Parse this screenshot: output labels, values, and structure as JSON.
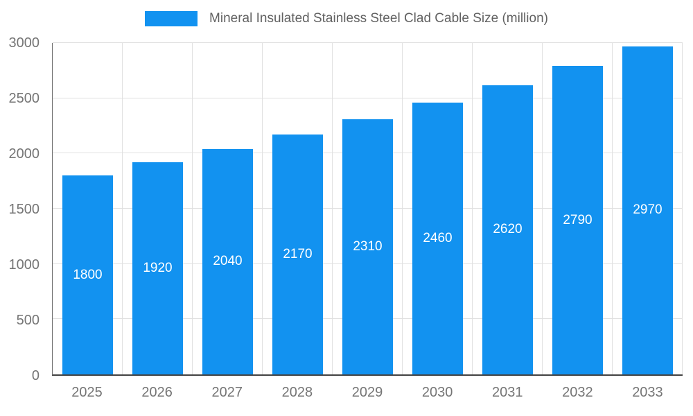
{
  "chart_data": {
    "type": "bar",
    "title": "Mineral Insulated Stainless Steel Clad Cable Size (million)",
    "categories": [
      "2025",
      "2026",
      "2027",
      "2028",
      "2029",
      "2030",
      "2031",
      "2032",
      "2033"
    ],
    "values": [
      1800,
      1920,
      2040,
      2170,
      2310,
      2460,
      2620,
      2790,
      2970
    ],
    "xlabel": "",
    "ylabel": "",
    "ylim": [
      0,
      3000
    ],
    "yticks": [
      0,
      500,
      1000,
      1500,
      2000,
      2500,
      3000
    ],
    "grid": true,
    "legend_position": "top",
    "bar_color": "#1292f0",
    "bar_label_color": "#ffffff",
    "axis_label_color": "#757575",
    "grid_color": "#e0e0e0",
    "title_color": "#616161"
  }
}
